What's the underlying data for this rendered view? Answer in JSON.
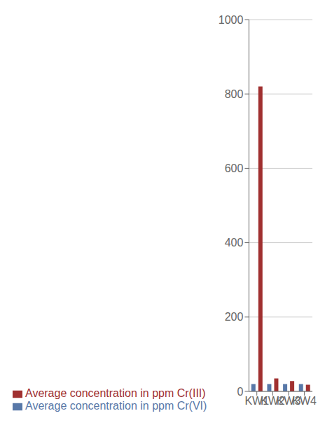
{
  "chart_data": {
    "type": "bar",
    "categories": [
      "KW1",
      "KW2",
      "KW3",
      "KW4"
    ],
    "series": [
      {
        "name": "Average concentration in ppm Cr(VI)",
        "color": "#5878a8",
        "values": [
          20,
          20,
          20,
          20
        ]
      },
      {
        "name": "Average concentration in ppm Cr(III)",
        "color": "#a03030",
        "values": [
          820,
          35,
          28,
          18
        ]
      }
    ],
    "ylim": [
      0,
      1000
    ],
    "yticks": [
      0,
      200,
      400,
      600,
      800,
      1000
    ],
    "grid": true,
    "legend": "lower left"
  }
}
